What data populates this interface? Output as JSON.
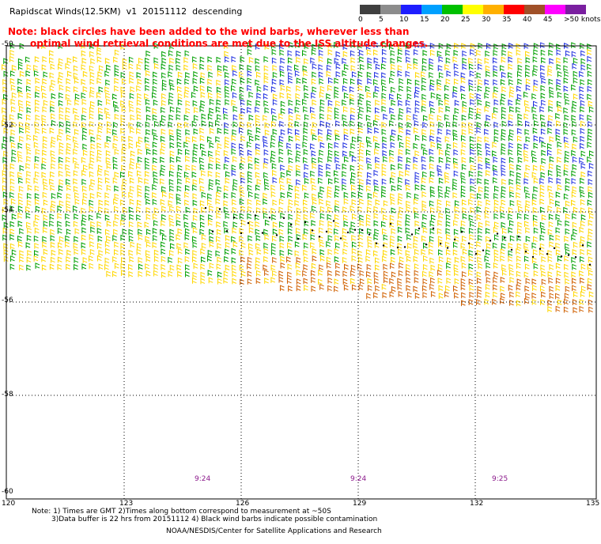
{
  "title": "Rapidscat Winds(12.5KM)  v1  20151112  descending",
  "note_line1": "Note: black circles have been added to the wind barbs, wherever less than",
  "note_line2": "optimal wind retrieval conditions are met due to the ISS altitude changes.",
  "colorbar": {
    "labels": [
      "0",
      "5",
      "10",
      "15",
      "20",
      "25",
      "30",
      "35",
      "40",
      "45",
      ">50 knots"
    ],
    "colors": [
      "#3f3f3f",
      "#8c8c8c",
      "#1e1eff",
      "#00a0ff",
      "#00c000",
      "#ffff00",
      "#ffb000",
      "#ff0000",
      "#a05028",
      "#ff00ff",
      "#7a1fa0"
    ]
  },
  "latitude_labels": [
    "-50",
    "-52",
    "-54",
    "-56",
    "-58",
    "-60"
  ],
  "longitude_labels": [
    "120",
    "123",
    "126",
    "129",
    "132",
    "135"
  ],
  "time_labels": [
    "9:24",
    "9:24",
    "9:25"
  ],
  "footnote_line1": "Note: 1) Times are GMT 2)Times along bottom correspond to measurement at ~50S",
  "footnote_line2": "3)Data buffer is 22 hrs from 20151112 4) Black wind barbs indicate possible contamination",
  "credit": "NOAA/NESDIS/Center for Satellite Applications and Research",
  "legend_colors": {
    "yellow": "#ffd700",
    "green": "#00a000",
    "blue": "#2030e0",
    "orange": "#d06000"
  }
}
